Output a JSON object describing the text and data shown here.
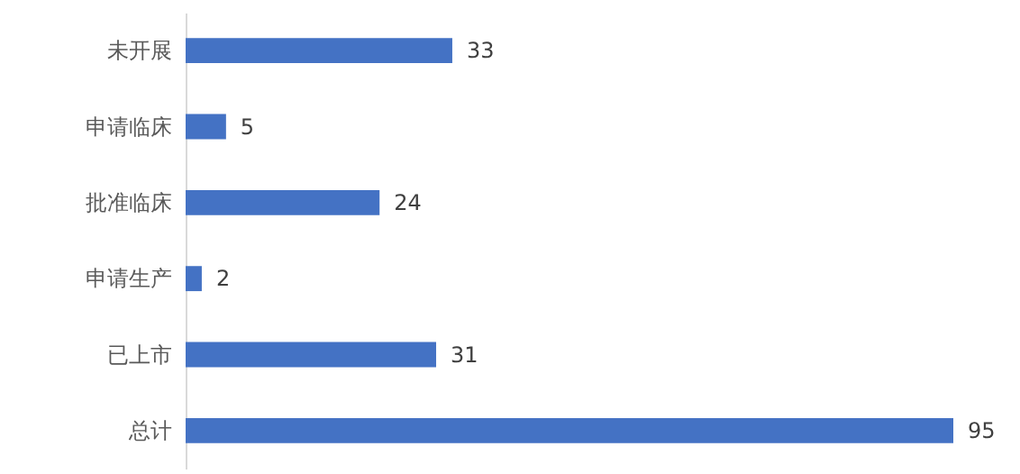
{
  "chart_data": {
    "type": "bar",
    "orientation": "horizontal",
    "categories": [
      "未开展",
      "申请临床",
      "批准临床",
      "申请生产",
      "已上市",
      "总计"
    ],
    "values": [
      33,
      5,
      24,
      2,
      31,
      95
    ],
    "color": "#4472c4",
    "data_labels": true,
    "grid": false
  }
}
